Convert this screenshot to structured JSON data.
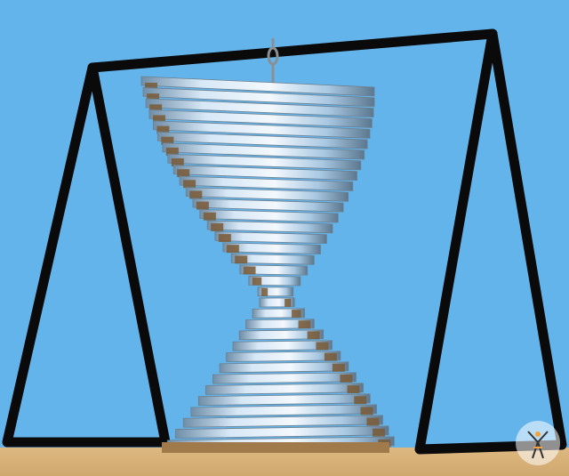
{
  "scene": {
    "subject": "twisted-mirror-spinner",
    "colors": {
      "sky": "#64b4ec",
      "ground": "#d9b57c",
      "frame": "#0a0a0a",
      "mirror_light": "#e8f2fb",
      "mirror_mid": "#9fc6e6",
      "mirror_dark": "#54708a",
      "edge_brown": "#7a5a36"
    }
  },
  "watermark": {
    "logo": "figure-logo-icon"
  }
}
